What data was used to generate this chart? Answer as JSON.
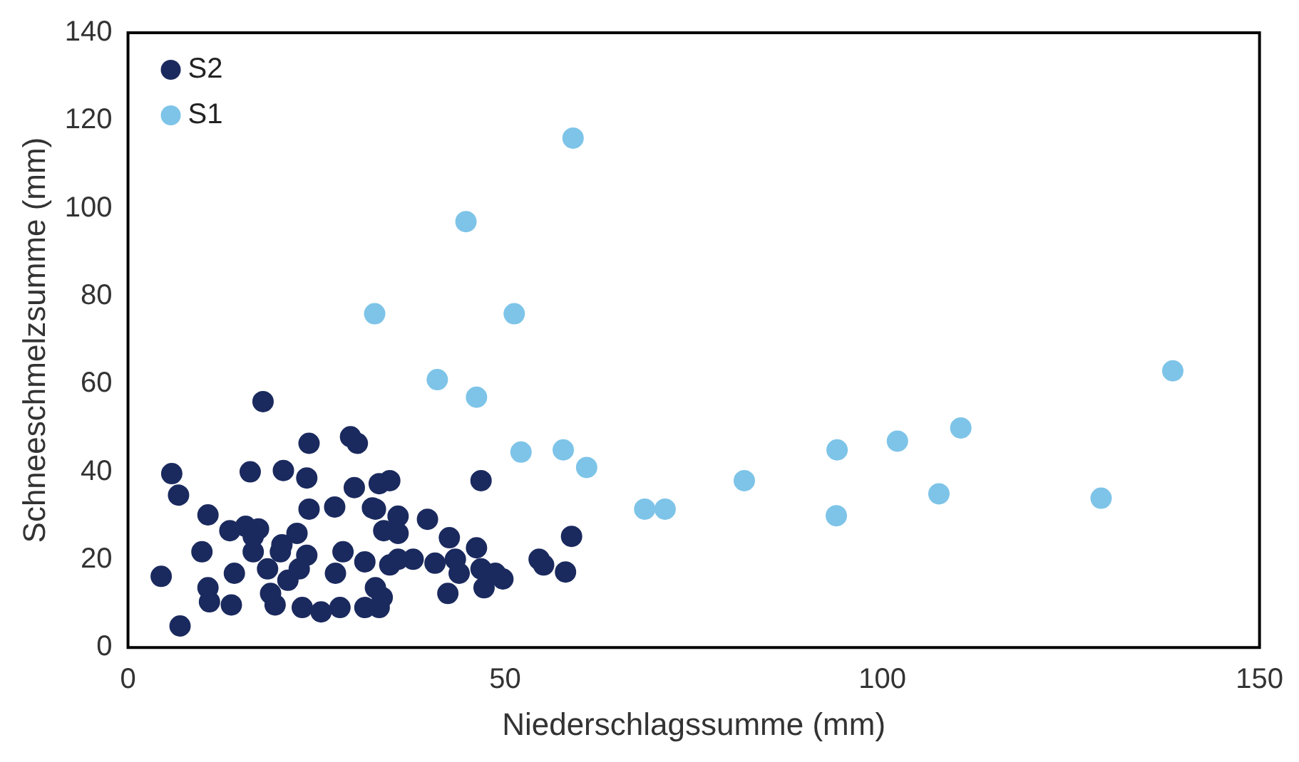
{
  "chart_data": {
    "type": "scatter",
    "xlabel": "Niederschlagssumme (mm)",
    "ylabel": "Schneeschmelzsumme (mm)",
    "xlim": [
      0,
      150
    ],
    "xticks": [
      0,
      50,
      100,
      150
    ],
    "ylim": [
      0,
      140
    ],
    "yticks": [
      0,
      20,
      40,
      60,
      80,
      100,
      120,
      140
    ],
    "grid": false,
    "legend": "top left",
    "marker": "circle",
    "series": [
      {
        "name": "S2",
        "color": "#1b2a5e",
        "x": [
          17.9,
          24,
          29.5,
          30.4,
          5.8,
          6.7,
          16.2,
          20.6,
          23.7,
          30,
          33.3,
          10.6,
          24,
          27.4,
          32.4,
          13.5,
          15.6,
          17.3,
          22.4,
          33.9,
          9.8,
          16.6,
          20.2,
          23.7,
          28.5,
          4.4,
          31.4,
          10.6,
          14.1,
          18.5,
          22.7,
          27.5,
          10.8,
          13.7,
          18.9,
          19.5,
          23.1,
          25.6,
          28.1,
          31.4,
          33.7,
          6.9,
          20.4,
          16.6,
          21.2,
          34.7,
          34.7,
          46.8,
          32.8,
          35.8,
          39.7,
          35.8,
          42.6,
          46.2,
          58.8,
          35.8,
          37.8,
          40.7,
          43.4,
          43.9,
          46.8,
          48.7,
          49.7,
          47.2,
          54.5,
          55.1,
          58,
          42.4,
          32.8,
          33.3
        ],
        "values": [
          56,
          46.5,
          48,
          46.5,
          39.6,
          34.7,
          40,
          40.3,
          38.6,
          36.4,
          37.3,
          30.2,
          31.5,
          32,
          31.8,
          26.6,
          27.6,
          27,
          26,
          26.6,
          21.8,
          21.8,
          21.8,
          21,
          21.8,
          16.2,
          19.5,
          13.6,
          16.9,
          17.9,
          17.9,
          16.9,
          10.4,
          9.7,
          12.3,
          9.7,
          9.1,
          8.1,
          9.1,
          9.1,
          11.4,
          4.9,
          23.4,
          25.3,
          15.3,
          18.8,
          38,
          38,
          31.5,
          29.9,
          29.2,
          26,
          25,
          22.7,
          25.3,
          20.1,
          20.1,
          19.2,
          20.1,
          16.9,
          17.9,
          16.9,
          15.6,
          13.6,
          20.1,
          18.8,
          17.2,
          12.3,
          13.6,
          9.1
        ]
      },
      {
        "name": "S1",
        "color": "#7ec4e8",
        "x": [
          32.7,
          44.8,
          59,
          51.2,
          41,
          46.2,
          52.1,
          57.7,
          60.8,
          68.5,
          71.2,
          81.7,
          94,
          93.9,
          102,
          110.4,
          107.5,
          129,
          138.5
        ],
        "values": [
          76,
          97,
          116,
          76,
          61,
          57,
          44.5,
          45,
          41,
          31.5,
          31.5,
          38,
          45,
          30,
          47,
          50,
          35,
          34,
          63
        ]
      }
    ]
  }
}
